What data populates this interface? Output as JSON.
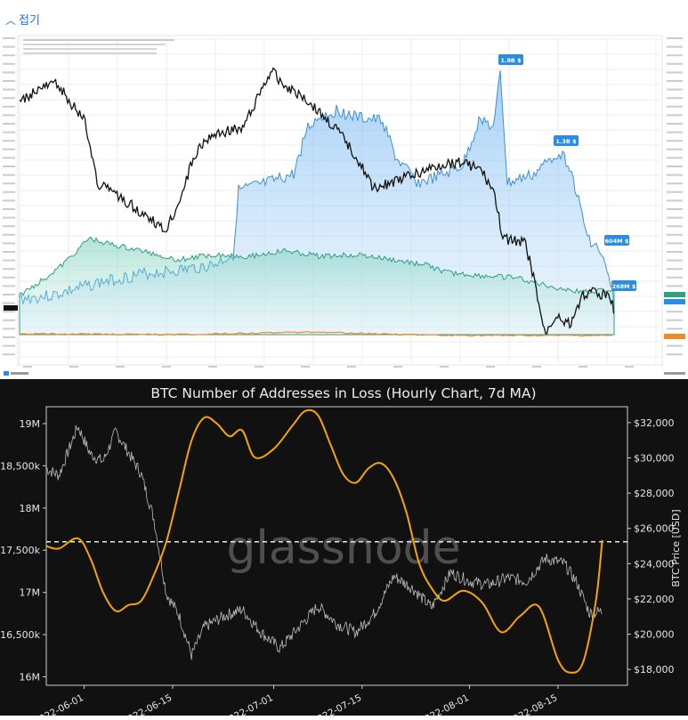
{
  "page": {
    "fold_label": "접기"
  },
  "charts_top": {
    "badges": [
      "1.9B $",
      "1.3B $",
      "604M $",
      "268M $"
    ]
  },
  "chart_data": [
    {
      "type": "area",
      "title": "",
      "note": "Top panel: stacked area + BTC price line (exchange-flow style dashboard); values not legible",
      "badges": [
        "1.9B $",
        "1.3B $",
        "604M $",
        "268M $"
      ]
    },
    {
      "type": "line",
      "title": "BTC Number of Addresses in Loss (Hourly Chart, 7d MA)",
      "xlabel": "",
      "ylabel_right": "BTC Price [USD]",
      "watermark": "glassnode",
      "x_ticks": [
        "2022-06-01",
        "2022-06-15",
        "2022-07-01",
        "2022-07-15",
        "2022-08-01",
        "2022-08-15"
      ],
      "y_left_ticks": [
        "16M",
        "16,500k",
        "17M",
        "17,500k",
        "18M",
        "18,500k",
        "19M"
      ],
      "y_left_range": [
        15900000,
        19200000
      ],
      "y_right_ticks": [
        "$18,000",
        "$20,000",
        "$22,000",
        "$24,000",
        "$26,000",
        "$28,000",
        "$30,000",
        "$32,000"
      ],
      "y_right_range": [
        17400000,
        32800000
      ],
      "reference_line": 17600000,
      "series": [
        {
          "name": "Addresses in Loss",
          "color": "#f7a300",
          "x": [
            "2022-05-26",
            "2022-05-28",
            "2022-05-31",
            "2022-06-02",
            "2022-06-04",
            "2022-06-06",
            "2022-06-08",
            "2022-06-10",
            "2022-06-12",
            "2022-06-14",
            "2022-06-16",
            "2022-06-18",
            "2022-06-20",
            "2022-06-22",
            "2022-06-24",
            "2022-06-26",
            "2022-06-28",
            "2022-07-01",
            "2022-07-04",
            "2022-07-06",
            "2022-07-08",
            "2022-07-10",
            "2022-07-12",
            "2022-07-14",
            "2022-07-16",
            "2022-07-18",
            "2022-07-20",
            "2022-07-22",
            "2022-07-24",
            "2022-07-26",
            "2022-07-28",
            "2022-07-31",
            "2022-08-03",
            "2022-08-06",
            "2022-08-09",
            "2022-08-12",
            "2022-08-15",
            "2022-08-17",
            "2022-08-19",
            "2022-08-21",
            "2022-08-22"
          ],
          "values": [
            17550000,
            17520000,
            17640000,
            17400000,
            17000000,
            16780000,
            16850000,
            16900000,
            17200000,
            17600000,
            18200000,
            18800000,
            19070000,
            19000000,
            18850000,
            18920000,
            18600000,
            18700000,
            18980000,
            19150000,
            19100000,
            18750000,
            18400000,
            18300000,
            18470000,
            18530000,
            18350000,
            17950000,
            17350000,
            17050000,
            16900000,
            17020000,
            16880000,
            16530000,
            16720000,
            16830000,
            16200000,
            16050000,
            16180000,
            16900000,
            17620000
          ]
        },
        {
          "name": "BTC Price",
          "color": "#cfcfcf",
          "x": [
            "2022-05-26",
            "2022-05-28",
            "2022-05-31",
            "2022-06-02",
            "2022-06-04",
            "2022-06-06",
            "2022-06-08",
            "2022-06-10",
            "2022-06-12",
            "2022-06-14",
            "2022-06-16",
            "2022-06-18",
            "2022-06-20",
            "2022-06-23",
            "2022-06-26",
            "2022-06-29",
            "2022-07-02",
            "2022-07-05",
            "2022-07-08",
            "2022-07-11",
            "2022-07-14",
            "2022-07-17",
            "2022-07-20",
            "2022-07-23",
            "2022-07-26",
            "2022-07-29",
            "2022-08-01",
            "2022-08-04",
            "2022-08-07",
            "2022-08-10",
            "2022-08-13",
            "2022-08-16",
            "2022-08-18",
            "2022-08-20",
            "2022-08-22"
          ],
          "values": [
            29400,
            29000,
            31800,
            30200,
            29800,
            31500,
            30300,
            29100,
            26600,
            22300,
            21100,
            18800,
            20400,
            21000,
            21400,
            20100,
            19200,
            20400,
            21600,
            20600,
            20100,
            21200,
            23300,
            22600,
            21500,
            23500,
            23000,
            22800,
            23200,
            23000,
            24300,
            24000,
            22900,
            21200,
            21300
          ]
        }
      ]
    }
  ]
}
